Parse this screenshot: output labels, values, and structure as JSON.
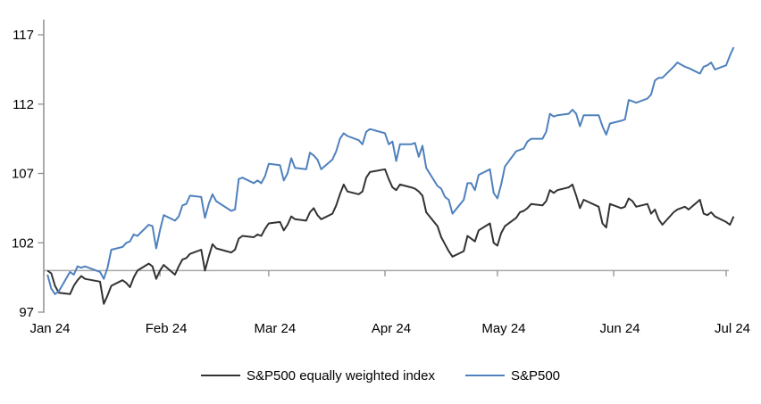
{
  "chart_data": {
    "type": "line",
    "title": "",
    "xlabel": "",
    "ylabel": "",
    "ylim": [
      97,
      117
    ],
    "y_ticks": [
      97,
      102,
      107,
      112,
      117
    ],
    "x_tick_labels": [
      "Jan 24",
      "Feb 24",
      "Mar 24",
      "Apr 24",
      "May 24",
      "Jun 24",
      "Jul 24"
    ],
    "month_tick_days": [
      0,
      31,
      60,
      91,
      121,
      152,
      182
    ],
    "x_range_days": [
      0,
      184
    ],
    "baseline_value": 100,
    "legend_position": "bottom",
    "grid": "off",
    "axis_color": "#8f8f8f",
    "baseline_color": "#a8a8a8",
    "text_color": "#000000",
    "days": [
      1,
      2,
      3,
      4,
      7,
      8,
      9,
      10,
      11,
      15,
      16,
      17,
      18,
      21,
      22,
      23,
      24,
      25,
      28,
      29,
      30,
      31,
      32,
      35,
      36,
      37,
      38,
      39,
      42,
      43,
      44,
      45,
      46,
      50,
      51,
      52,
      53,
      56,
      57,
      58,
      59,
      60,
      63,
      64,
      65,
      66,
      67,
      70,
      71,
      72,
      73,
      74,
      77,
      78,
      79,
      80,
      81,
      84,
      85,
      86,
      87,
      91,
      92,
      93,
      94,
      95,
      98,
      99,
      100,
      101,
      102,
      105,
      106,
      107,
      108,
      109,
      112,
      113,
      114,
      115,
      116,
      119,
      120,
      121,
      122,
      123,
      126,
      127,
      128,
      129,
      130,
      133,
      134,
      135,
      136,
      137,
      140,
      141,
      142,
      143,
      144,
      148,
      149,
      150,
      151,
      154,
      155,
      156,
      157,
      158,
      161,
      162,
      163,
      164,
      165,
      168,
      169,
      171,
      172,
      175,
      176,
      177,
      178,
      179,
      182,
      183,
      184
    ],
    "series": [
      {
        "name": "S&P500 equally weighted index",
        "color": "#333333",
        "line_width": 2,
        "values": [
          100.0,
          99.8,
          98.9,
          98.4,
          98.3,
          98.9,
          99.3,
          99.6,
          99.4,
          99.2,
          97.6,
          98.2,
          98.9,
          99.3,
          99.1,
          98.8,
          99.5,
          100.0,
          100.5,
          100.3,
          99.4,
          100.0,
          100.4,
          99.7,
          100.3,
          100.8,
          100.9,
          101.2,
          101.5,
          100.0,
          101.0,
          101.9,
          101.6,
          101.3,
          101.5,
          102.3,
          102.5,
          102.4,
          102.6,
          102.5,
          103.0,
          103.4,
          103.5,
          102.9,
          103.3,
          103.9,
          103.7,
          103.6,
          104.2,
          104.5,
          104.0,
          103.7,
          104.1,
          104.7,
          105.5,
          106.2,
          105.7,
          105.5,
          105.7,
          106.7,
          107.1,
          107.3,
          106.6,
          106.0,
          105.8,
          106.2,
          106.0,
          105.9,
          105.7,
          105.4,
          104.2,
          103.2,
          102.4,
          101.9,
          101.4,
          101.0,
          101.4,
          102.5,
          102.3,
          102.1,
          102.9,
          103.4,
          102.0,
          101.8,
          102.7,
          103.2,
          103.8,
          104.2,
          104.3,
          104.5,
          104.8,
          104.7,
          105.0,
          105.8,
          105.6,
          105.8,
          106.0,
          106.2,
          105.4,
          104.5,
          105.1,
          104.6,
          103.4,
          103.1,
          104.8,
          104.5,
          104.6,
          105.2,
          105.0,
          104.6,
          104.8,
          104.1,
          104.4,
          103.7,
          103.3,
          104.2,
          104.4,
          104.6,
          104.4,
          105.1,
          104.1,
          104.0,
          104.2,
          103.9,
          103.5,
          103.3,
          103.9
        ]
      },
      {
        "name": "S&P500",
        "color": "#4f81bd",
        "line_width": 2,
        "values": [
          99.7,
          98.7,
          98.3,
          98.5,
          99.9,
          99.7,
          100.3,
          100.2,
          100.3,
          99.9,
          99.4,
          100.2,
          101.5,
          101.7,
          102.0,
          102.1,
          102.6,
          102.5,
          103.3,
          103.2,
          101.6,
          102.9,
          104.0,
          103.6,
          103.9,
          104.7,
          104.8,
          105.4,
          105.3,
          103.8,
          104.8,
          105.5,
          105.0,
          104.3,
          104.4,
          106.6,
          106.7,
          106.3,
          106.5,
          106.3,
          106.8,
          107.7,
          107.6,
          106.5,
          107.0,
          108.1,
          107.4,
          107.3,
          108.5,
          108.3,
          108.0,
          107.3,
          108.0,
          108.6,
          109.5,
          109.9,
          109.7,
          109.4,
          109.1,
          110.0,
          110.2,
          109.9,
          109.1,
          109.3,
          107.9,
          109.1,
          109.1,
          109.2,
          108.2,
          109.0,
          107.4,
          106.1,
          105.9,
          105.3,
          105.1,
          104.1,
          105.1,
          106.3,
          106.3,
          105.8,
          106.9,
          107.3,
          105.6,
          105.2,
          106.2,
          107.5,
          108.6,
          108.7,
          108.8,
          109.3,
          109.5,
          109.5,
          110.0,
          111.3,
          111.1,
          111.2,
          111.3,
          111.6,
          111.3,
          110.4,
          111.2,
          111.2,
          110.4,
          109.8,
          110.6,
          110.8,
          110.9,
          112.3,
          112.2,
          112.1,
          112.4,
          112.7,
          113.7,
          113.9,
          113.9,
          114.7,
          115.0,
          114.7,
          114.6,
          114.2,
          114.7,
          114.8,
          115.0,
          114.5,
          114.8,
          115.5,
          116.1
        ]
      }
    ]
  }
}
